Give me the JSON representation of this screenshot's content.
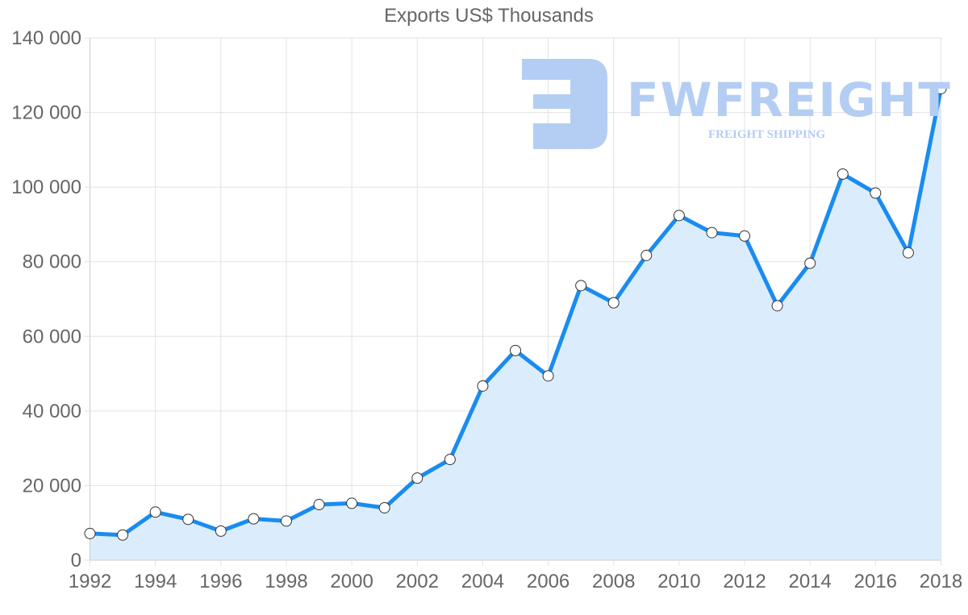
{
  "chart_data": {
    "type": "area",
    "title": "Exports US$ Thousands",
    "xlabel": "",
    "ylabel": "",
    "x": [
      1992,
      1993,
      1994,
      1995,
      1996,
      1997,
      1998,
      1999,
      2000,
      2001,
      2002,
      2003,
      2004,
      2005,
      2006,
      2007,
      2008,
      2009,
      2010,
      2011,
      2012,
      2013,
      2014,
      2015,
      2016,
      2017,
      2018
    ],
    "series": [
      {
        "name": "Exports US$ Thousands",
        "values": [
          7150,
          6750,
          12900,
          10950,
          7800,
          11100,
          10500,
          14900,
          15250,
          14050,
          22000,
          27000,
          46700,
          56200,
          49400,
          73600,
          69000,
          81700,
          92400,
          87800,
          86900,
          68200,
          79600,
          103500,
          98400,
          82400,
          126400
        ],
        "line_color": "#1a8cf0",
        "fill_color": "#d9ecfc"
      }
    ],
    "ylim": [
      0,
      140000
    ],
    "yticks": [
      0,
      20000,
      40000,
      60000,
      80000,
      100000,
      120000,
      140000
    ],
    "ytick_labels": [
      "0",
      "20 000",
      "40 000",
      "60 000",
      "80 000",
      "100 000",
      "120 000",
      "140 000"
    ],
    "xticks": [
      1992,
      1994,
      1996,
      1998,
      2000,
      2002,
      2004,
      2006,
      2008,
      2010,
      2012,
      2014,
      2016,
      2018
    ],
    "xtick_labels": [
      "1992",
      "1994",
      "1996",
      "1998",
      "2000",
      "2002",
      "2004",
      "2006",
      "2008",
      "2010",
      "2012",
      "2014",
      "2016",
      "2018"
    ],
    "grid": true,
    "legend": "none",
    "markers": "circle-white"
  },
  "watermark": {
    "brand": "FWFREIGHT",
    "tagline": "FREIGHT SHIPPING"
  },
  "colors": {
    "grid": "#e2e2e2",
    "axis": "#cccccc",
    "text": "#666666",
    "marker_fill": "#ffffff",
    "marker_stroke": "#333333",
    "watermark": "#b4cdf3"
  }
}
